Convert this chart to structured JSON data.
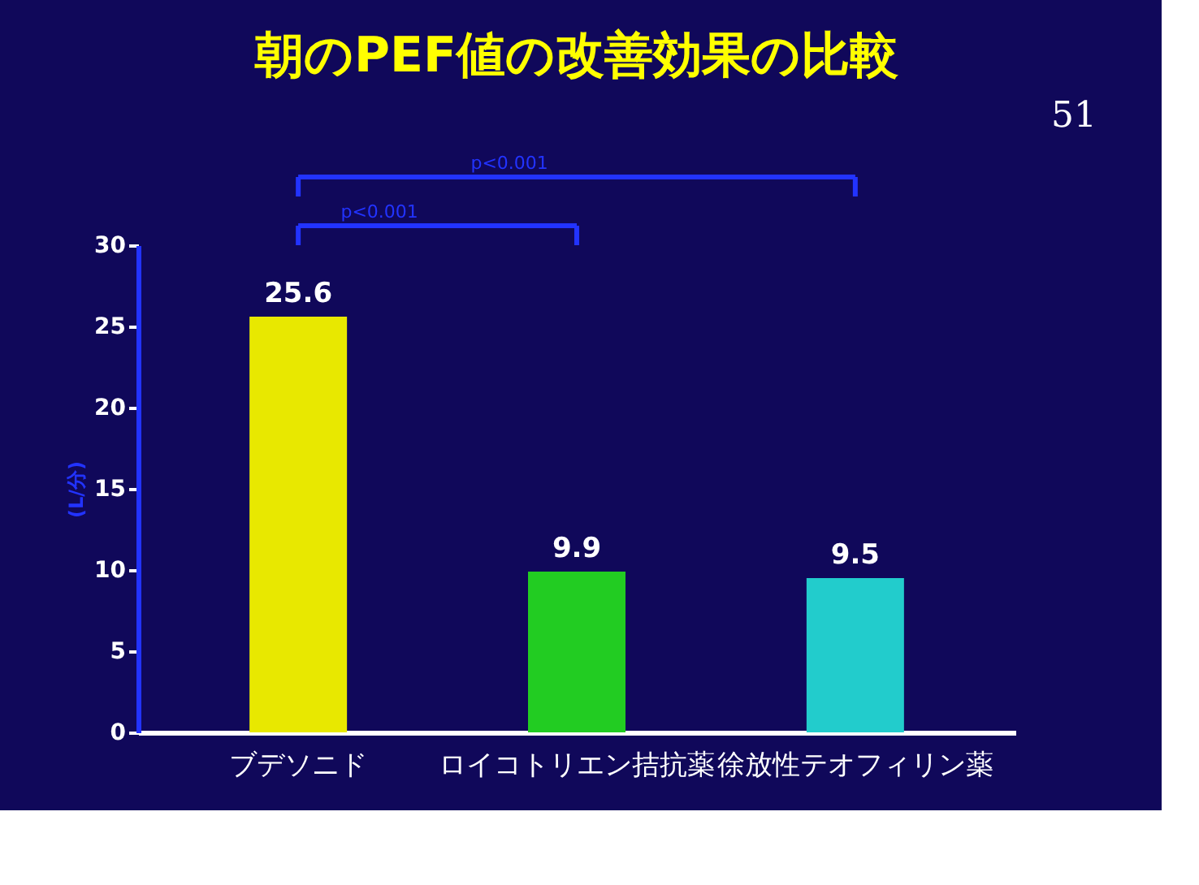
{
  "chart_data": {
    "type": "bar",
    "title": "朝のPEF値の改善効果の比較",
    "ylabel": "(L/分)",
    "categories": [
      "ブデソニド",
      "ロイコトリエン拮抗薬",
      "徐放性テオフィリン薬"
    ],
    "values": [
      25.6,
      9.9,
      9.5
    ],
    "colors": [
      "#e8e800",
      "#22cc22",
      "#22cccc"
    ],
    "ylim": [
      0,
      30
    ],
    "yticks": [
      0,
      5,
      10,
      15,
      20,
      25,
      30
    ],
    "grid": false,
    "data_labels": true,
    "annotations": [
      "p<0.001",
      "p<0.001",
      "51"
    ]
  }
}
